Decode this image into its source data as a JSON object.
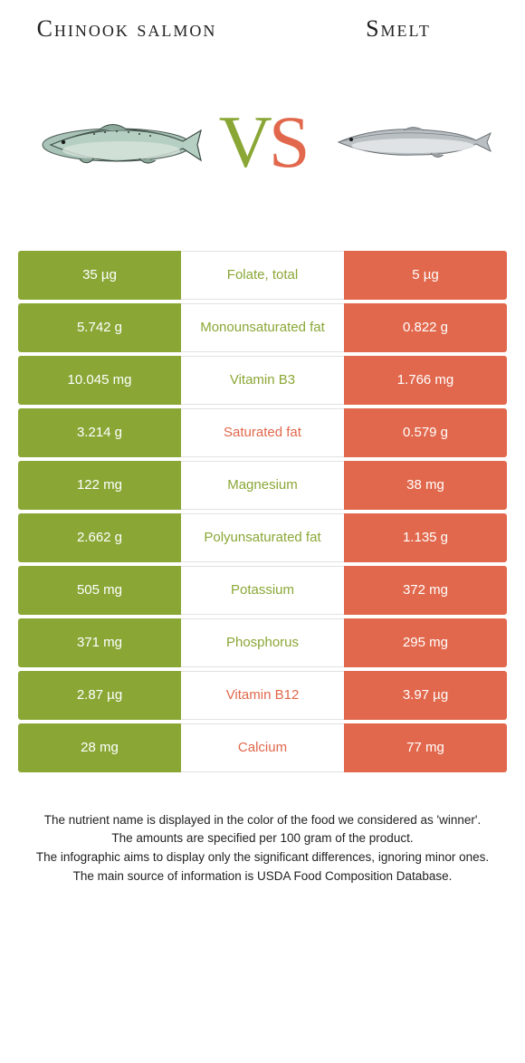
{
  "colors": {
    "left_cell": "#8aa736",
    "right_cell": "#e1684c",
    "mid_bg": "#ffffff",
    "mid_border": "#e2e2e2",
    "winner_left_text": "#8aa736",
    "winner_right_text": "#e1684c"
  },
  "header": {
    "left_title": "Chinook salmon",
    "right_title": "Smelt"
  },
  "vs": {
    "v": "V",
    "s": "S"
  },
  "rows": [
    {
      "nutrient": "Folate, total",
      "left": "35 µg",
      "right": "5 µg",
      "winner": "left"
    },
    {
      "nutrient": "Monounsaturated fat",
      "left": "5.742 g",
      "right": "0.822 g",
      "winner": "left"
    },
    {
      "nutrient": "Vitamin B3",
      "left": "10.045 mg",
      "right": "1.766 mg",
      "winner": "left"
    },
    {
      "nutrient": "Saturated fat",
      "left": "3.214 g",
      "right": "0.579 g",
      "winner": "right"
    },
    {
      "nutrient": "Magnesium",
      "left": "122 mg",
      "right": "38 mg",
      "winner": "left"
    },
    {
      "nutrient": "Polyunsaturated fat",
      "left": "2.662 g",
      "right": "1.135 g",
      "winner": "left"
    },
    {
      "nutrient": "Potassium",
      "left": "505 mg",
      "right": "372 mg",
      "winner": "left"
    },
    {
      "nutrient": "Phosphorus",
      "left": "371 mg",
      "right": "295 mg",
      "winner": "left"
    },
    {
      "nutrient": "Vitamin B12",
      "left": "2.87 µg",
      "right": "3.97 µg",
      "winner": "right"
    },
    {
      "nutrient": "Calcium",
      "left": "28 mg",
      "right": "77 mg",
      "winner": "right"
    }
  ],
  "footer": [
    "The nutrient name is displayed in the color of the food we considered as 'winner'.",
    "The amounts are specified per 100 gram of the product.",
    "The infographic aims to display only the significant differences, ignoring minor ones.",
    "The main source of information is USDA Food Composition Database."
  ]
}
